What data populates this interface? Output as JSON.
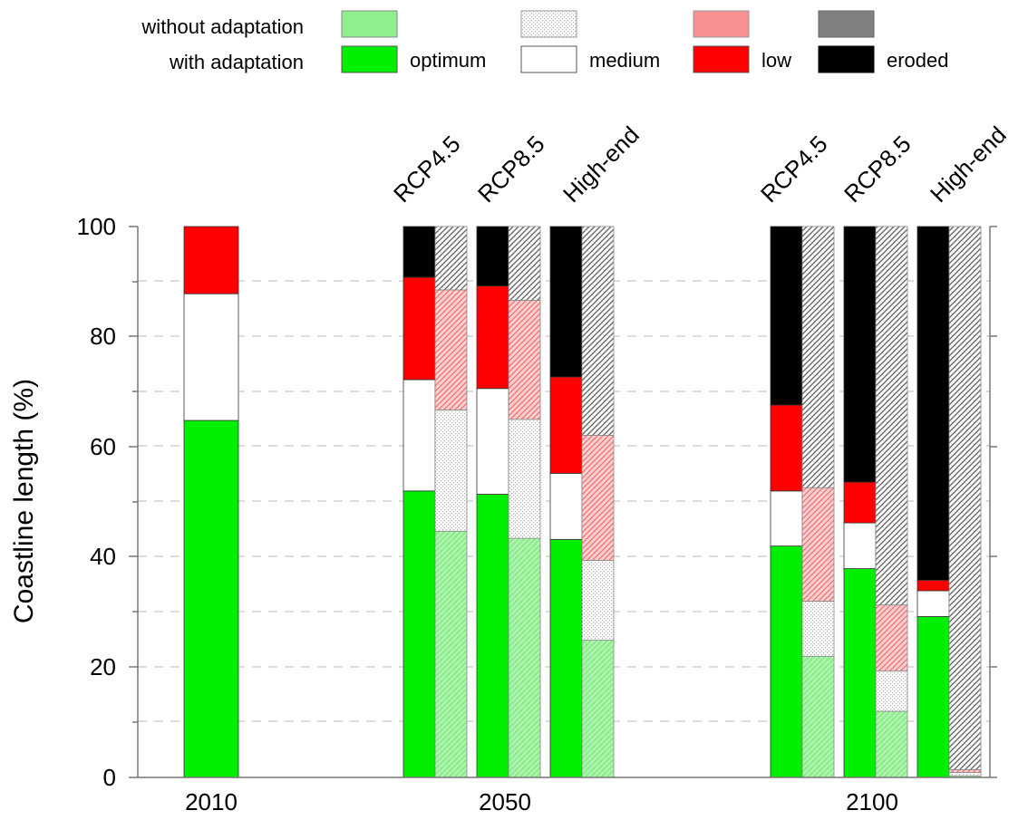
{
  "chart_data": {
    "type": "bar",
    "subtype": "stacked",
    "ylabel": "Coastline length (%)",
    "ylim": [
      0,
      100
    ],
    "yticks": [
      "0",
      "20",
      "40",
      "60",
      "80",
      "100"
    ],
    "grid": "horizontal-dashed",
    "legend_position": "top",
    "legend": {
      "row_labels": [
        "without adaptation",
        "with adaptation"
      ],
      "categories": [
        "optimum",
        "medium",
        "low",
        "eroded"
      ]
    },
    "colors": {
      "optimum": "#00ee00",
      "optimum_no_adapt": "#8fef8f",
      "medium": "#ffffff",
      "medium_no_adapt": "#f0f0f0",
      "low": "#ff0000",
      "low_no_adapt": "#f79090",
      "eroded": "#000000",
      "eroded_no_adapt": "#808080"
    },
    "x_groups": [
      {
        "label": "2010",
        "bars": [
          {
            "scenario": "",
            "adaptation": "with",
            "optimum": 64.8,
            "medium": 23.0,
            "low": 12.2,
            "eroded": 0
          }
        ]
      },
      {
        "label": "2050",
        "bars": [
          {
            "scenario": "RCP4.5",
            "adaptation": "with",
            "optimum": 52.0,
            "medium": 20.2,
            "low": 18.6,
            "eroded": 9.2
          },
          {
            "scenario": "RCP4.5",
            "adaptation": "without",
            "optimum": 44.7,
            "medium": 22.0,
            "low": 21.8,
            "eroded": 11.5
          },
          {
            "scenario": "RCP8.5",
            "adaptation": "with",
            "optimum": 51.4,
            "medium": 19.2,
            "low": 18.6,
            "eroded": 10.8
          },
          {
            "scenario": "RCP8.5",
            "adaptation": "without",
            "optimum": 43.4,
            "medium": 21.6,
            "low": 21.6,
            "eroded": 13.4
          },
          {
            "scenario": "High-end",
            "adaptation": "with",
            "optimum": 43.2,
            "medium": 12.0,
            "low": 17.5,
            "eroded": 27.3
          },
          {
            "scenario": "High-end",
            "adaptation": "without",
            "optimum": 24.9,
            "medium": 14.5,
            "low": 22.7,
            "eroded": 37.9
          }
        ]
      },
      {
        "label": "2100",
        "bars": [
          {
            "scenario": "RCP4.5",
            "adaptation": "with",
            "optimum": 42.0,
            "medium": 10.0,
            "low": 15.6,
            "eroded": 32.4
          },
          {
            "scenario": "RCP4.5",
            "adaptation": "without",
            "optimum": 22.0,
            "medium": 10.0,
            "low": 20.6,
            "eroded": 47.4
          },
          {
            "scenario": "RCP8.5",
            "adaptation": "with",
            "optimum": 37.9,
            "medium": 8.3,
            "low": 7.4,
            "eroded": 46.4
          },
          {
            "scenario": "RCP8.5",
            "adaptation": "without",
            "optimum": 12.0,
            "medium": 7.3,
            "low": 12.0,
            "eroded": 68.7
          },
          {
            "scenario": "High-end",
            "adaptation": "with",
            "optimum": 29.2,
            "medium": 4.7,
            "low": 1.9,
            "eroded": 64.2
          },
          {
            "scenario": "High-end",
            "adaptation": "without",
            "optimum": 0.3,
            "medium": 0.6,
            "low": 0.5,
            "eroded": 98.6
          }
        ]
      }
    ]
  }
}
